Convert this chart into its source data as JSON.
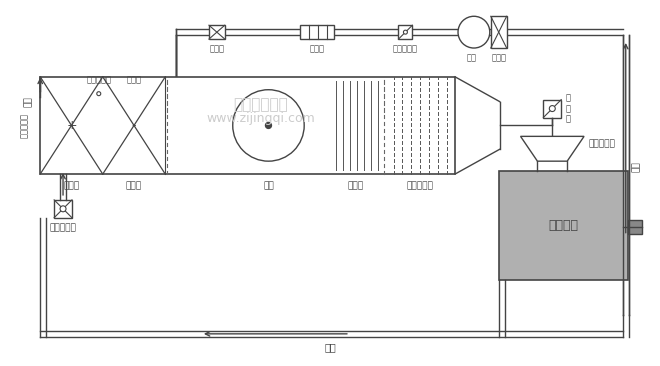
{
  "bg_color": "#ffffff",
  "lc": "#444444",
  "gray_prod": "#b0b0b0",
  "gray_box": "#888888",
  "watermark1": "广州帝净净化",
  "watermark2": "www.zijingqi.com",
  "wm_color": "#cccccc",
  "labels": {
    "paifengzhao_top": "排风罩",
    "xiaoshengqi": "消音器",
    "fengliangtiaojiefa_top": "风量调节阀",
    "fengji": "风机",
    "guolvqi": "过滤器",
    "xinfeng": "新风",
    "fengliangtiaojiefa_mid": "风量调节阀",
    "paifengzhao_mid": "排风罩",
    "chulv": "初效过滤器",
    "jiarelv": "加热器",
    "biaolengqi": "表冷器",
    "fengji_main": "风机",
    "jiashiqi": "加湿器",
    "zhonglv": "中效过滤器",
    "fengliangtiaojiefa_bot": "风量调节阀",
    "tiaojieqi": "调\n节\n器",
    "gaolv": "高效过滤器",
    "shengchan": "生产区域",
    "huifeng": "回风",
    "paifeng": "排风"
  }
}
